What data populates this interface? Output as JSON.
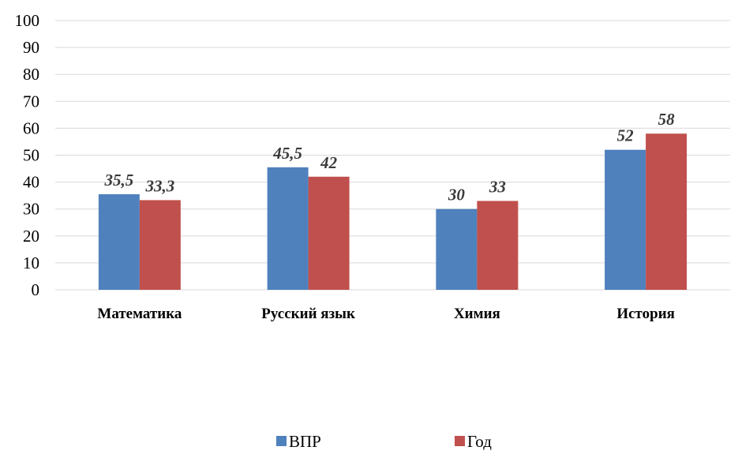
{
  "chart_data": {
    "type": "bar",
    "title": "",
    "xlabel": "",
    "ylabel": "",
    "categories": [
      "Математика",
      "Русский язык",
      "Химия",
      "История"
    ],
    "series": [
      {
        "name": "ВПР",
        "values": [
          35.5,
          45.5,
          30,
          52
        ],
        "labels": [
          "35,5",
          "45,5",
          "30",
          "52"
        ],
        "color": "#4f81bd"
      },
      {
        "name": "Год",
        "values": [
          33.3,
          42,
          33,
          58
        ],
        "labels": [
          "33,3",
          "42",
          "33",
          "58"
        ],
        "color": "#c0504d"
      }
    ],
    "ylim": [
      0,
      100
    ],
    "yticks": [
      0,
      10,
      20,
      30,
      40,
      50,
      60,
      70,
      80,
      90,
      100
    ],
    "grid": true,
    "legend": "bottom"
  }
}
